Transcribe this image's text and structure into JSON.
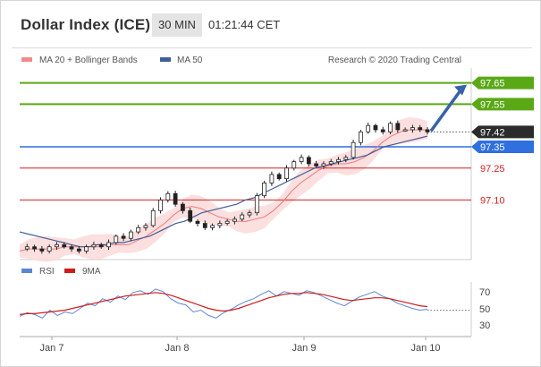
{
  "header": {
    "title": "Dollar Index (ICE)",
    "timeframe": "30 MIN",
    "time": "01:21:44 CET"
  },
  "legend": {
    "bollinger": "MA 20 + Bollinger Bands",
    "ma50": "MA 50",
    "credit": "Research © 2020 Trading Central",
    "rsi": "RSI",
    "rsi_ma": "9MA"
  },
  "colors": {
    "resistance": "#5aa816",
    "current": "#2b2b2b",
    "pivot": "#2f6fe0",
    "support": "#d62020",
    "arrow": "#3a62a6",
    "ma50": "#3f5f9a",
    "ma20": "#f07a7a",
    "band": "#fbd9d9",
    "rsi": "#5b86d6",
    "rsi_ma": "#d21a1a"
  },
  "chart_data": [
    {
      "type": "line",
      "title": "Dollar Index (ICE)",
      "timeframe": "30 MIN",
      "x_tick_labels": [
        "Jan 7",
        "Jan 8",
        "Jan 9",
        "Jan 10"
      ],
      "ylim": [
        96.82,
        97.72
      ],
      "price_levels": [
        {
          "label": "97.65",
          "value": 97.65,
          "kind": "resistance"
        },
        {
          "label": "97.55",
          "value": 97.55,
          "kind": "resistance"
        },
        {
          "label": "97.42",
          "value": 97.42,
          "kind": "current"
        },
        {
          "label": "97.35",
          "value": 97.35,
          "kind": "pivot"
        },
        {
          "label": "97.25",
          "value": 97.25,
          "kind": "support"
        },
        {
          "label": "97.10",
          "value": 97.1,
          "kind": "support"
        }
      ],
      "series": [
        {
          "name": "Price",
          "values": [
            96.87,
            96.88,
            96.87,
            96.86,
            96.88,
            96.89,
            96.88,
            96.87,
            96.86,
            96.88,
            96.89,
            96.88,
            96.9,
            96.93,
            96.92,
            96.95,
            96.97,
            96.98,
            97.05,
            97.1,
            97.13,
            97.08,
            97.05,
            97.0,
            96.99,
            96.97,
            96.98,
            96.99,
            97.0,
            97.01,
            97.03,
            97.04,
            97.12,
            97.18,
            97.22,
            97.2,
            97.25,
            97.28,
            97.3,
            97.27,
            97.26,
            97.27,
            97.28,
            97.29,
            97.3,
            97.37,
            97.42,
            97.45,
            97.43,
            97.42,
            97.46,
            97.43,
            97.43,
            97.44,
            97.43,
            97.42
          ]
        },
        {
          "name": "MA 50",
          "values": [
            96.95,
            96.94,
            96.93,
            96.92,
            96.91,
            96.9,
            96.89,
            96.88,
            96.88,
            96.89,
            96.89,
            96.9,
            96.9,
            96.91,
            96.92,
            96.93,
            96.95,
            96.97,
            96.99,
            97.0,
            97.02,
            97.04,
            97.05,
            97.06,
            97.07,
            97.08,
            97.1,
            97.11,
            97.13,
            97.15,
            97.17,
            97.19,
            97.21,
            97.23,
            97.25,
            97.26,
            97.27,
            97.28,
            97.29,
            97.3,
            97.31,
            97.33,
            97.35,
            97.36,
            97.37,
            97.38,
            97.39,
            97.4
          ]
        },
        {
          "name": "MA 20",
          "values": [
            96.86,
            96.87,
            96.87,
            96.87,
            96.87,
            96.88,
            96.88,
            96.88,
            96.88,
            96.88,
            96.89,
            96.89,
            96.89,
            96.91,
            96.93,
            96.96,
            96.99,
            97.03,
            97.06,
            97.07,
            97.06,
            97.04,
            97.02,
            97.01,
            97.0,
            97.0,
            97.01,
            97.02,
            97.05,
            97.09,
            97.14,
            97.18,
            97.21,
            97.24,
            97.26,
            97.27,
            97.27,
            97.28,
            97.3,
            97.33,
            97.37,
            97.4,
            97.42,
            97.43,
            97.43,
            97.43
          ]
        }
      ]
    },
    {
      "type": "line",
      "title": "RSI",
      "ylim": [
        20,
        82
      ],
      "y_ticks": [
        70,
        50,
        30
      ],
      "series": [
        {
          "name": "RSI",
          "values": [
            43,
            47,
            45,
            41,
            50,
            44,
            48,
            46,
            52,
            58,
            55,
            63,
            59,
            66,
            62,
            70,
            72,
            68,
            74,
            71,
            63,
            58,
            56,
            48,
            50,
            44,
            41,
            47,
            51,
            56,
            60,
            63,
            68,
            72,
            66,
            71,
            69,
            67,
            72,
            70,
            66,
            62,
            58,
            55,
            60,
            65,
            68,
            71,
            66,
            63,
            58,
            55,
            52,
            50,
            51
          ]
        },
        {
          "name": "9MA",
          "values": [
            45,
            46,
            46,
            47,
            48,
            49,
            50,
            52,
            54,
            56,
            58,
            60,
            62,
            64,
            66,
            67,
            68,
            69,
            70,
            69,
            67,
            64,
            61,
            58,
            55,
            52,
            50,
            49,
            50,
            52,
            55,
            58,
            61,
            64,
            66,
            68,
            69,
            69,
            70,
            69,
            68,
            66,
            64,
            62,
            61,
            62,
            63,
            64,
            64,
            63,
            61,
            59,
            57,
            55,
            54
          ]
        }
      ]
    }
  ]
}
